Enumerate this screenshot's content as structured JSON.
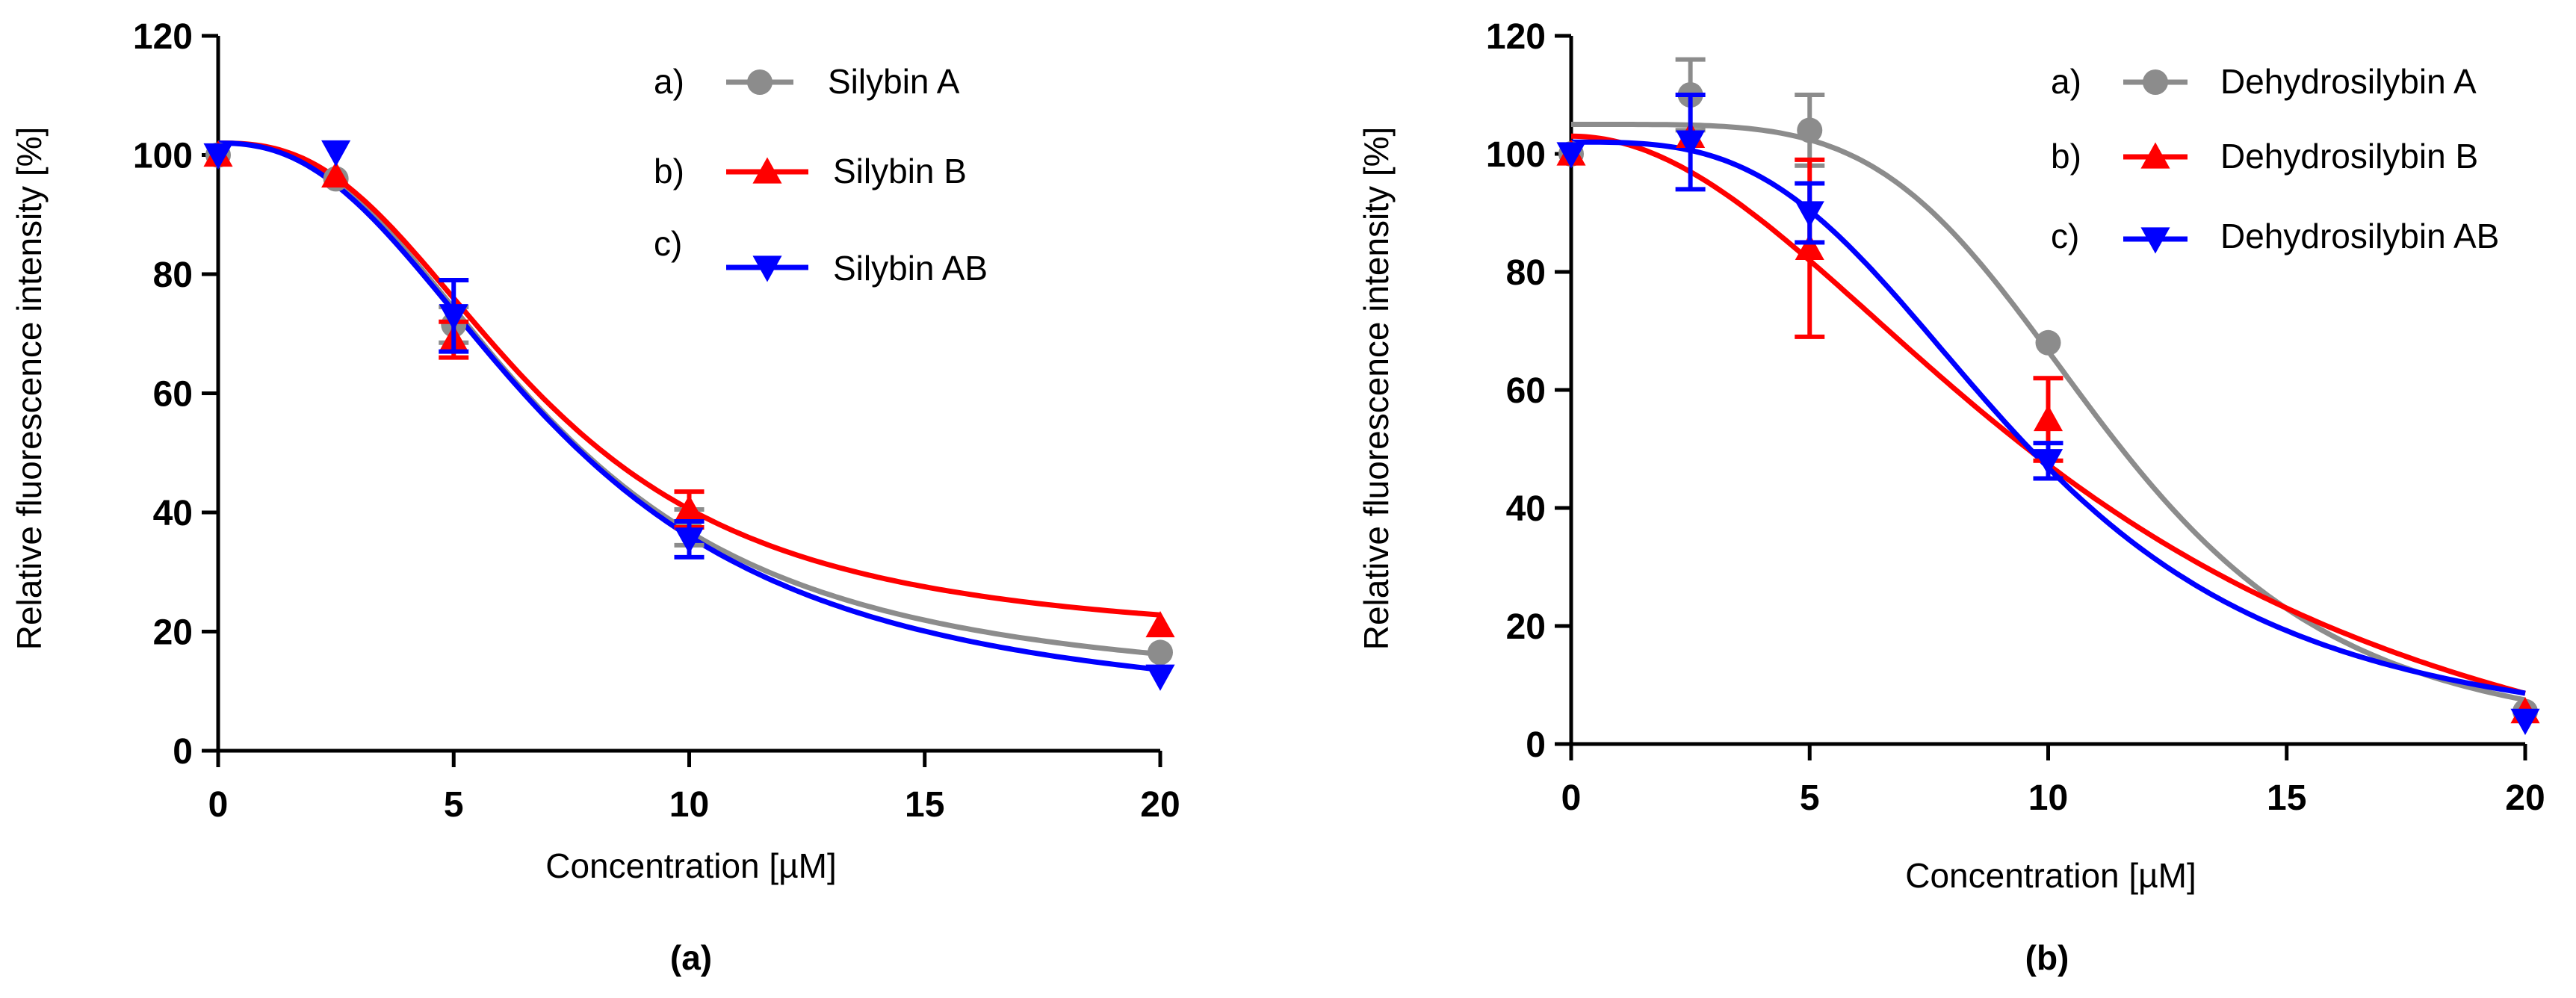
{
  "colors": {
    "gray": "#8c8c8c",
    "red": "#ff0000",
    "blue": "#0000ff",
    "axis": "#000000"
  },
  "chart_data": [
    {
      "type": "line",
      "panel_label": "(a)",
      "xlabel": "Concentration [µM]",
      "ylabel": "Relative fluorescence intensity [%]",
      "xlim": [
        0,
        20
      ],
      "ylim": [
        0,
        120
      ],
      "xticks": [
        "0",
        "5",
        "10",
        "15",
        "20"
      ],
      "yticks": [
        "0",
        "20",
        "40",
        "60",
        "80",
        "100",
        "120"
      ],
      "legend_position": "top-right",
      "series": [
        {
          "name": "Silybin A",
          "legend_prefix": "a)",
          "color": "#8c8c8c",
          "marker": "circle",
          "points": [
            {
              "x": 0,
              "y": 100,
              "err": 0
            },
            {
              "x": 2.5,
              "y": 96,
              "err": 0
            },
            {
              "x": 5,
              "y": 71.5,
              "err": 3
            },
            {
              "x": 10,
              "y": 37.5,
              "err": 3
            },
            {
              "x": 20,
              "y": 16.5,
              "err": 0
            }
          ],
          "fit": {
            "top": 102,
            "bottom": 10,
            "ec50": 7.0,
            "hill": 2.5
          }
        },
        {
          "name": "Silybin B",
          "legend_prefix": "b)",
          "color": "#ff0000",
          "marker": "triangle-up",
          "points": [
            {
              "x": 0,
              "y": 100,
              "err": 0
            },
            {
              "x": 2.5,
              "y": 96.5,
              "err": 0
            },
            {
              "x": 5,
              "y": 69,
              "err": 3
            },
            {
              "x": 10,
              "y": 40.5,
              "err": 3
            },
            {
              "x": 20,
              "y": 21,
              "err": 0
            }
          ],
          "fit": {
            "top": 102,
            "bottom": 18,
            "ec50": 6.8,
            "hill": 2.6
          }
        },
        {
          "name": "Silybin AB",
          "legend_prefix": "c)",
          "color": "#0000ff",
          "marker": "triangle-down",
          "points": [
            {
              "x": 0,
              "y": 100,
              "err": 0
            },
            {
              "x": 2.5,
              "y": 100.5,
              "err": 0
            },
            {
              "x": 5,
              "y": 73,
              "err": 6
            },
            {
              "x": 10,
              "y": 35.5,
              "err": 3
            },
            {
              "x": 20,
              "y": 12.5,
              "err": 0
            }
          ],
          "fit": {
            "top": 102,
            "bottom": 6,
            "ec50": 7.2,
            "hill": 2.4
          }
        }
      ]
    },
    {
      "type": "line",
      "panel_label": "(b)",
      "xlabel": "Concentration [µM]",
      "ylabel": "Relative fluorescence intensity  [%]",
      "xlim": [
        0,
        20
      ],
      "ylim": [
        0,
        120
      ],
      "xticks": [
        "0",
        "5",
        "10",
        "15",
        "20"
      ],
      "yticks": [
        "0",
        "20",
        "40",
        "60",
        "80",
        "100",
        "120"
      ],
      "legend_position": "top-right",
      "series": [
        {
          "name": "Dehydrosilybin A",
          "legend_prefix": "a)",
          "color": "#8c8c8c",
          "marker": "circle",
          "points": [
            {
              "x": 0,
              "y": 100,
              "err": 0
            },
            {
              "x": 2.5,
              "y": 110,
              "err": 6
            },
            {
              "x": 5,
              "y": 104,
              "err": 6
            },
            {
              "x": 10,
              "y": 68,
              "err": 0
            },
            {
              "x": 20,
              "y": 5.5,
              "err": 0
            }
          ],
          "fit": {
            "top": 105,
            "bottom": 0,
            "ec50": 11.3,
            "hill": 4.5
          }
        },
        {
          "name": "Dehydrosilybin B",
          "legend_prefix": "b)",
          "color": "#ff0000",
          "marker": "triangle-up",
          "points": [
            {
              "x": 0,
              "y": 100,
              "err": 0
            },
            {
              "x": 2.5,
              "y": 103,
              "err": 0
            },
            {
              "x": 5,
              "y": 84,
              "err": 15
            },
            {
              "x": 10,
              "y": 55,
              "err": 7
            },
            {
              "x": 20,
              "y": 5.5,
              "err": 0
            }
          ],
          "fit": {
            "top": 103,
            "bottom": -20,
            "ec50": 11.0,
            "hill": 2.0
          }
        },
        {
          "name": "Dehydrosilybin AB",
          "legend_prefix": "c)",
          "color": "#0000ff",
          "marker": "triangle-down",
          "points": [
            {
              "x": 0,
              "y": 100,
              "err": 0
            },
            {
              "x": 2.5,
              "y": 102,
              "err": 8
            },
            {
              "x": 5,
              "y": 90,
              "err": 5
            },
            {
              "x": 10,
              "y": 48,
              "err": 3
            },
            {
              "x": 20,
              "y": 4,
              "err": 0
            }
          ],
          "fit": {
            "top": 102,
            "bottom": 0,
            "ec50": 9.5,
            "hill": 3.2
          }
        }
      ]
    }
  ]
}
